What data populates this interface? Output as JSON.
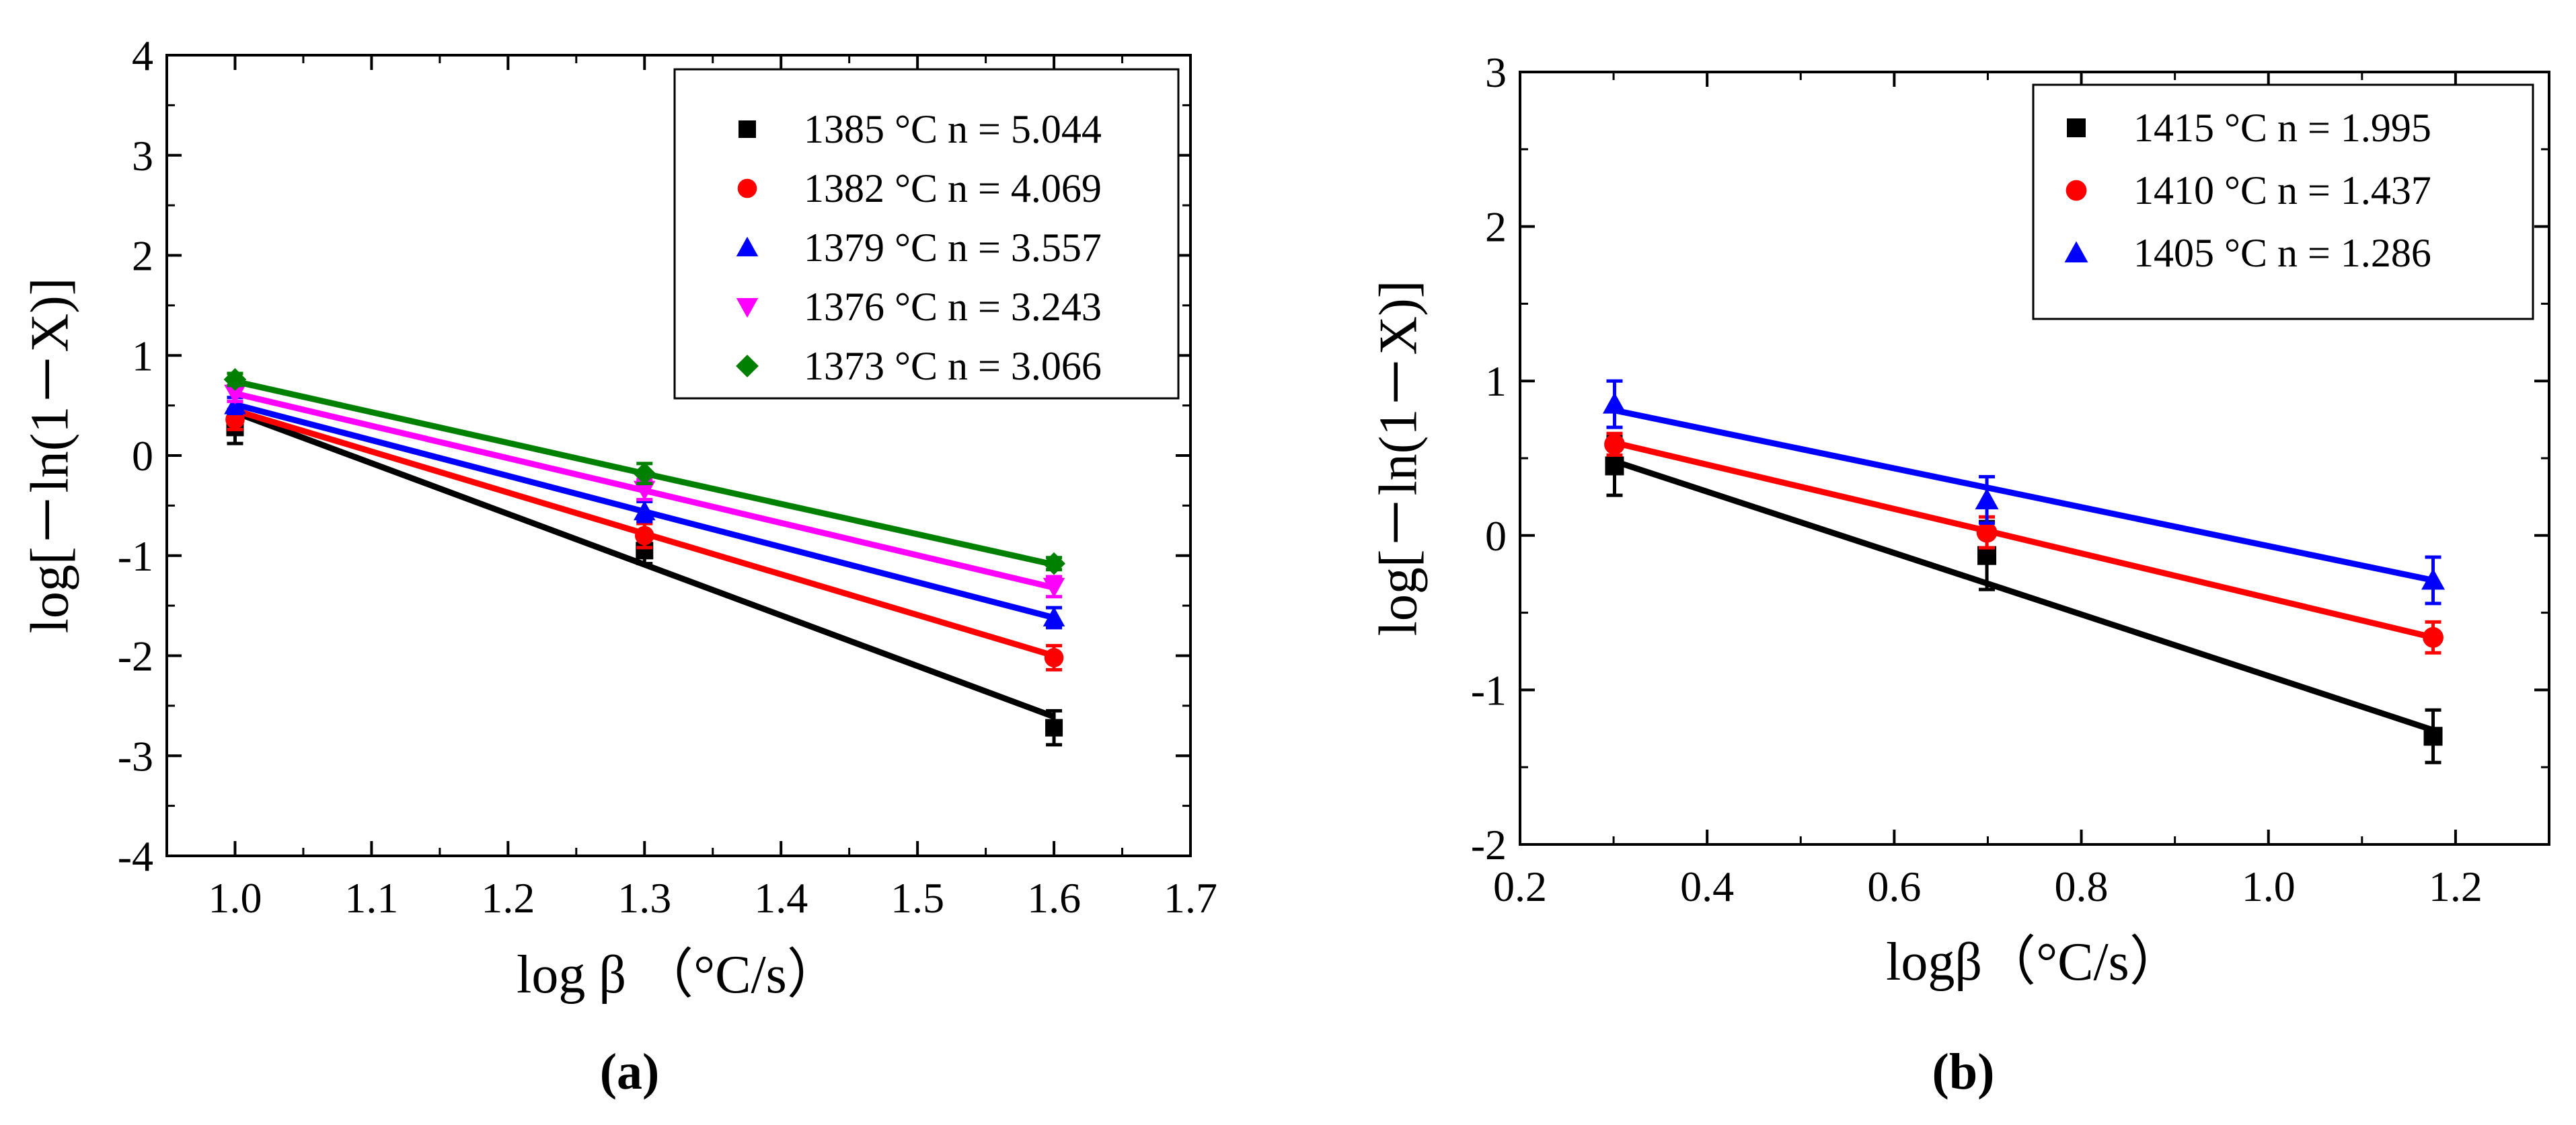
{
  "chart_data": [
    {
      "type": "scatter",
      "panel_label": "(a)",
      "xlabel": "log β （°C/s）",
      "ylabel": "log[－ln(1－X)]",
      "xlim": [
        0.95,
        1.7
      ],
      "ylim": [
        -4,
        4
      ],
      "xticks": [
        "1.0",
        "1.1",
        "1.2",
        "1.3",
        "1.4",
        "1.5",
        "1.6",
        "1.7"
      ],
      "yticks": [
        "-4",
        "-3",
        "-2",
        "-1",
        "0",
        "1",
        "2",
        "3",
        "4"
      ],
      "legend_position": "top-right",
      "x": [
        1.0,
        1.3,
        1.6
      ],
      "series": [
        {
          "name": "1385 °C  n = 5.044",
          "color": "#000000",
          "marker": "square",
          "values": [
            0.28,
            -0.95,
            -2.72
          ],
          "errors": [
            0.16,
            0.13,
            0.17
          ],
          "fit": [
            0.43,
            -1.09,
            -2.61
          ]
        },
        {
          "name": "1382 °C  n = 4.069",
          "color": "#ff0000",
          "marker": "circle",
          "values": [
            0.36,
            -0.8,
            -2.02
          ],
          "errors": [
            0.1,
            0.12,
            0.12
          ],
          "fit": [
            0.45,
            -0.78,
            -2.0
          ]
        },
        {
          "name": "1379 °C  n = 3.557",
          "color": "#0000ff",
          "marker": "triangle-up",
          "values": [
            0.5,
            -0.56,
            -1.62
          ],
          "errors": [
            0.08,
            0.1,
            0.1
          ],
          "fit": [
            0.51,
            -0.56,
            -1.62
          ]
        },
        {
          "name": "1376 °C  n = 3.243",
          "color": "#ff00ff",
          "marker": "triangle-down",
          "values": [
            0.62,
            -0.34,
            -1.31
          ],
          "errors": [
            0.08,
            0.1,
            0.1
          ],
          "fit": [
            0.62,
            -0.35,
            -1.32
          ]
        },
        {
          "name": "1373 °C  n = 3.066",
          "color": "#008000",
          "marker": "diamond",
          "values": [
            0.76,
            -0.18,
            -1.08
          ],
          "errors": [
            0.06,
            0.1,
            0.06
          ],
          "fit": [
            0.74,
            -0.18,
            -1.09
          ]
        }
      ]
    },
    {
      "type": "scatter",
      "panel_label": "(b)",
      "xlabel": "logβ（°C/s）",
      "ylabel": "log[－ln(1－X)]",
      "xlim": [
        0.2,
        1.3
      ],
      "ylim": [
        -2,
        3
      ],
      "xticks": [
        "0.2",
        "0.4",
        "0.6",
        "0.8",
        "1.0",
        "1.2"
      ],
      "yticks": [
        "-2",
        "-1",
        "0",
        "1",
        "2",
        "3"
      ],
      "legend_position": "top-right",
      "x": [
        0.301,
        0.699,
        1.176
      ],
      "series": [
        {
          "name": "1415 °C n = 1.995",
          "color": "#000000",
          "marker": "square",
          "values": [
            0.45,
            -0.13,
            -1.3
          ],
          "errors": [
            0.19,
            0.22,
            0.17
          ],
          "fit": [
            0.48,
            -0.31,
            -1.26
          ]
        },
        {
          "name": "1410 °C n = 1.437",
          "color": "#ff0000",
          "marker": "circle",
          "values": [
            0.59,
            0.02,
            -0.66
          ],
          "errors": [
            0.07,
            0.1,
            0.1
          ],
          "fit": [
            0.6,
            0.03,
            -0.66
          ]
        },
        {
          "name": "1405 °C n = 1.286",
          "color": "#0000ff",
          "marker": "triangle-up",
          "values": [
            0.85,
            0.23,
            -0.29
          ],
          "errors": [
            0.15,
            0.15,
            0.15
          ],
          "fit": [
            0.81,
            0.31,
            -0.29
          ]
        }
      ]
    }
  ]
}
